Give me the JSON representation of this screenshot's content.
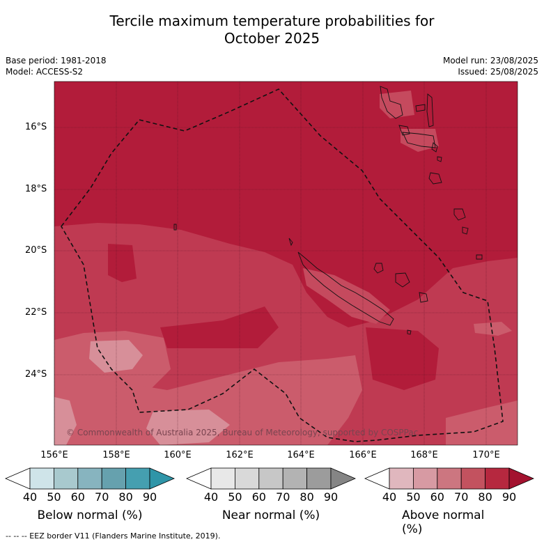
{
  "title_line1": "Tercile maximum temperature probabilities for",
  "title_line2": "October 2025",
  "base_period": "Base period: 1981-2018",
  "model": "Model: ACCESS-S2",
  "model_run": "Model run: 23/08/2025",
  "issued": "Issued: 25/08/2025",
  "lat_labels": [
    "16°S",
    "18°S",
    "20°S",
    "22°S",
    "24°S"
  ],
  "lon_labels": [
    "156°E",
    "158°E",
    "160°E",
    "162°E",
    "164°E",
    "166°E",
    "168°E",
    "170°E"
  ],
  "copyright": "© Commonwealth of Australia 2025, Bureau of Meteorology, supported by COSPPac",
  "legends": [
    {
      "title": "Below normal (%)",
      "ticks": [
        "40",
        "50",
        "60",
        "70",
        "80",
        "90"
      ],
      "colors": [
        "#ffffff",
        "#cfe4e9",
        "#a8c9ce",
        "#87b4bf",
        "#66a1ae",
        "#459fb0",
        "#2f95a8"
      ]
    },
    {
      "title": "Near normal (%)",
      "ticks": [
        "40",
        "50",
        "60",
        "70",
        "80",
        "90"
      ],
      "colors": [
        "#ffffff",
        "#e8e8e8",
        "#d9d9d9",
        "#c7c7c7",
        "#b3b3b3",
        "#9c9c9c",
        "#858585"
      ]
    },
    {
      "title": "Above normal (%)",
      "ticks": [
        "40",
        "50",
        "60",
        "70",
        "80",
        "90"
      ],
      "colors": [
        "#ffffff",
        "#e0b7be",
        "#d79aa3",
        "#cc7680",
        "#c3525f",
        "#b6283f",
        "#a3122f"
      ]
    }
  ],
  "eez_note": "--  --  -- EEZ border V11 (Flanders Marine Institute, 2019)."
}
